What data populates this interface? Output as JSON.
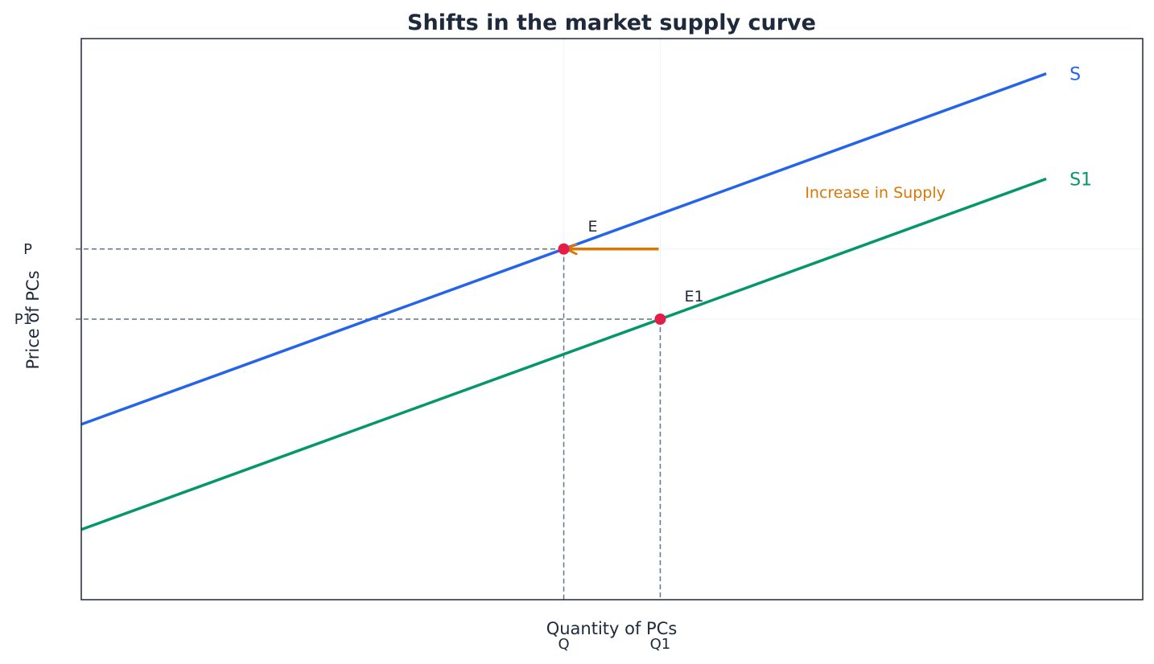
{
  "chart_data": {
    "type": "line",
    "title": "Shifts in the market supply curve",
    "xlabel": "Quantity of PCs",
    "ylabel": "Price of PCs",
    "xlim": [
      0,
      11
    ],
    "ylim": [
      0,
      8
    ],
    "grid": false,
    "x_ticks": [
      {
        "value": 5,
        "label": "Q"
      },
      {
        "value": 6,
        "label": "Q1"
      }
    ],
    "y_ticks": [
      {
        "value": 5,
        "label": "P"
      },
      {
        "value": 4,
        "label": "P1"
      }
    ],
    "series": [
      {
        "name": "S",
        "color": "#2563eb",
        "x": [
          0,
          10
        ],
        "y": [
          2.5,
          7.5
        ]
      },
      {
        "name": "S1",
        "color": "#059669",
        "x": [
          0,
          10
        ],
        "y": [
          1.0,
          6.0
        ]
      }
    ],
    "points": [
      {
        "label": "E",
        "x": 5,
        "y": 5,
        "color": "#e11d48"
      },
      {
        "label": "E1",
        "x": 6,
        "y": 4,
        "color": "#e11d48"
      }
    ],
    "annotations": [
      {
        "text": "Increase in Supply",
        "color": "#d97706",
        "x": 7.5,
        "y": 5.8
      }
    ],
    "arrow": {
      "from": [
        6,
        5
      ],
      "to": [
        5,
        5
      ],
      "color": "#d97706"
    },
    "guide_color": "#64748b",
    "frame_color": "#1e293b"
  }
}
